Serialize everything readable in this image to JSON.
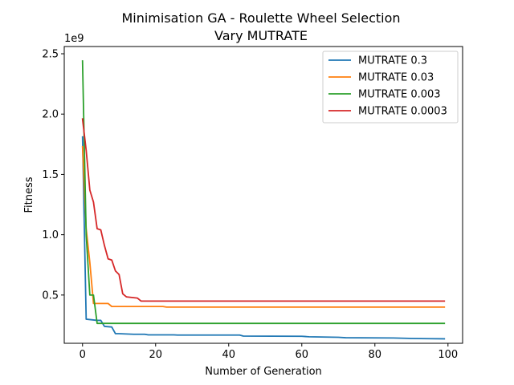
{
  "chart_data": {
    "type": "line",
    "title": "Minimisation GA - Roulette Wheel Selection",
    "subtitle": "Vary MUTRATE",
    "xlabel": "Number of Generation",
    "ylabel": "Fitness",
    "y_offset_label": "1e9",
    "xlim": [
      -5,
      104
    ],
    "ylim": [
      0.1,
      2.56
    ],
    "xticks": [
      0,
      20,
      40,
      60,
      80,
      100
    ],
    "yticks": [
      0.5,
      1.0,
      1.5,
      2.0,
      2.5
    ],
    "xtick_labels": [
      "0",
      "20",
      "40",
      "60",
      "80",
      "100"
    ],
    "ytick_labels": [
      "0.5",
      "1.0",
      "1.5",
      "2.0",
      "2.5"
    ],
    "grid": false,
    "legend_position": "top-right",
    "series": [
      {
        "name": "MUTRATE 0.3",
        "color": "#1f77b4",
        "points": [
          [
            0,
            1.81
          ],
          [
            1,
            0.3
          ],
          [
            4,
            0.29
          ],
          [
            5,
            0.29
          ],
          [
            6,
            0.24
          ],
          [
            8,
            0.235
          ],
          [
            9,
            0.18
          ],
          [
            10,
            0.18
          ],
          [
            14,
            0.175
          ],
          [
            17,
            0.175
          ],
          [
            18,
            0.17
          ],
          [
            25,
            0.17
          ],
          [
            26,
            0.168
          ],
          [
            43,
            0.168
          ],
          [
            44,
            0.16
          ],
          [
            60,
            0.158
          ],
          [
            61,
            0.156
          ],
          [
            62,
            0.154
          ],
          [
            70,
            0.15
          ],
          [
            72,
            0.146
          ],
          [
            85,
            0.144
          ],
          [
            90,
            0.14
          ],
          [
            95,
            0.138
          ],
          [
            99,
            0.137
          ]
        ]
      },
      {
        "name": "MUTRATE 0.03",
        "color": "#ff7f0e",
        "points": [
          [
            0,
            1.73
          ],
          [
            1,
            1.05
          ],
          [
            2,
            0.77
          ],
          [
            3,
            0.43
          ],
          [
            7,
            0.43
          ],
          [
            8,
            0.405
          ],
          [
            22,
            0.405
          ],
          [
            23,
            0.4
          ],
          [
            99,
            0.4
          ]
        ]
      },
      {
        "name": "MUTRATE 0.003",
        "color": "#2ca02c",
        "points": [
          [
            0,
            2.44
          ],
          [
            1,
            1.0
          ],
          [
            2,
            0.5
          ],
          [
            3,
            0.5
          ],
          [
            4,
            0.265
          ],
          [
            99,
            0.265
          ]
        ]
      },
      {
        "name": "MUTRATE 0.0003",
        "color": "#d62728",
        "points": [
          [
            0,
            1.96
          ],
          [
            1,
            1.7
          ],
          [
            2,
            1.37
          ],
          [
            3,
            1.27
          ],
          [
            4,
            1.05
          ],
          [
            5,
            1.04
          ],
          [
            6,
            0.91
          ],
          [
            7,
            0.8
          ],
          [
            8,
            0.79
          ],
          [
            9,
            0.7
          ],
          [
            10,
            0.67
          ],
          [
            11,
            0.51
          ],
          [
            12,
            0.485
          ],
          [
            15,
            0.475
          ],
          [
            16,
            0.45
          ],
          [
            99,
            0.45
          ]
        ]
      }
    ]
  }
}
